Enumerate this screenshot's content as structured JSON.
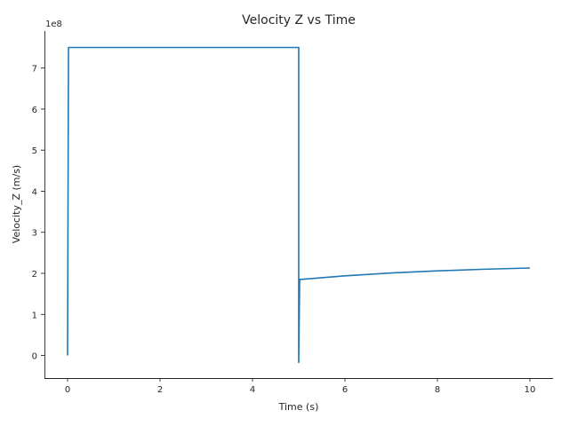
{
  "chart_data": {
    "type": "line",
    "title": "Velocity Z vs Time",
    "xlabel": "Time (s)",
    "ylabel": "Velocity_Z (m/s)",
    "y_offset_label": "1e8",
    "xlim": [
      -0.5,
      10.5
    ],
    "ylim": [
      -0.55,
      7.9
    ],
    "x_ticks": [
      0,
      2,
      4,
      6,
      8,
      10
    ],
    "x_tick_labels": [
      "0",
      "2",
      "4",
      "6",
      "8",
      "10"
    ],
    "y_ticks": [
      0,
      1,
      2,
      3,
      4,
      5,
      6,
      7
    ],
    "y_tick_labels": [
      "0",
      "1",
      "2",
      "3",
      "4",
      "5",
      "6",
      "7"
    ],
    "grid": false,
    "line_color": "#1f77b4",
    "series": [
      {
        "x": [
          0.0,
          0.02,
          4.98,
          5.0,
          5.0,
          5.02,
          6.0,
          7.0,
          8.0,
          9.0,
          10.0
        ],
        "y": [
          0.0,
          7.5,
          7.5,
          7.5,
          -0.17,
          1.85,
          1.94,
          2.01,
          2.06,
          2.1,
          2.13
        ]
      }
    ]
  }
}
